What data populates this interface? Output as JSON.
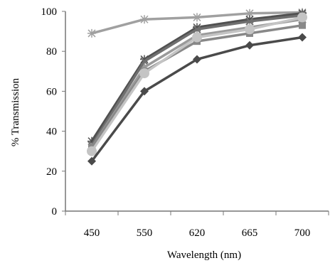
{
  "chart_data": {
    "type": "line",
    "title": "",
    "xlabel": "Wavelength (nm)",
    "ylabel": "% Transmission",
    "categories": [
      "450",
      "550",
      "620",
      "665",
      "700"
    ],
    "ylim": [
      0,
      100
    ],
    "yticks": [
      0,
      20,
      40,
      60,
      80,
      100
    ],
    "grid": false,
    "legend": "none",
    "series": [
      {
        "values": [
          89,
          96,
          97,
          99,
          99.5
        ],
        "color": "#a0a0a0",
        "marker": "star"
      },
      {
        "values": [
          35,
          76,
          92,
          96,
          99
        ],
        "color": "#505050",
        "marker": "star"
      },
      {
        "values": [
          33,
          75,
          91,
          95,
          98
        ],
        "color": "#6f6f6f",
        "marker": "x"
      },
      {
        "values": [
          32,
          72,
          88,
          92,
          96
        ],
        "color": "#9a9a9a",
        "marker": "triangle"
      },
      {
        "values": [
          32,
          70,
          85,
          89,
          93
        ],
        "color": "#888888",
        "marker": "square"
      },
      {
        "values": [
          30,
          69,
          87,
          91,
          97
        ],
        "color": "#c4c4c4",
        "marker": "circle"
      },
      {
        "values": [
          25,
          60,
          76,
          83,
          87
        ],
        "color": "#4a4a4a",
        "marker": "diamond"
      }
    ]
  }
}
